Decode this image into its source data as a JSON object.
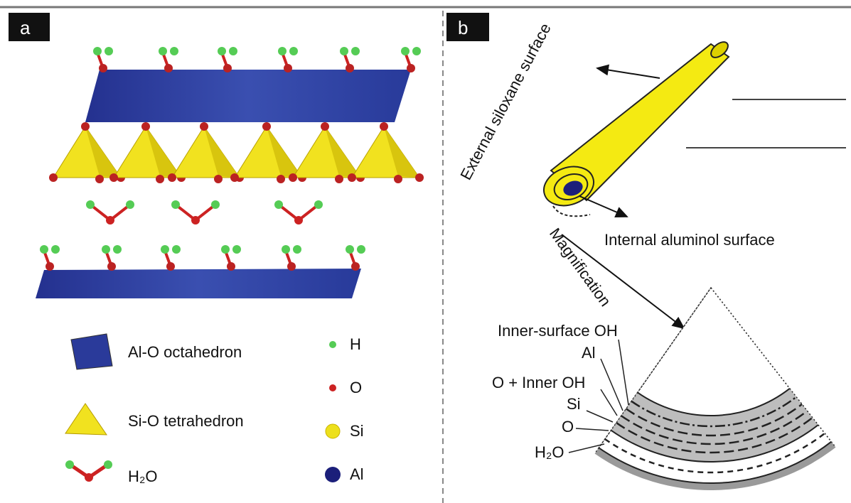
{
  "panel_a": {
    "label": "a",
    "legend": [
      "Al-O octahedron",
      "Si-O tetrahedron",
      "H₂O"
    ],
    "atoms": [
      "H",
      "O",
      "Si",
      "Al"
    ]
  },
  "panel_b": {
    "label": "b",
    "external": "External siloxane surface",
    "internal": "Internal aluminol surface",
    "magnification": "Magnification",
    "layers": [
      "Inner-surface OH",
      "Al",
      "O + Inner OH",
      "Si",
      "O",
      "H₂O"
    ]
  }
}
